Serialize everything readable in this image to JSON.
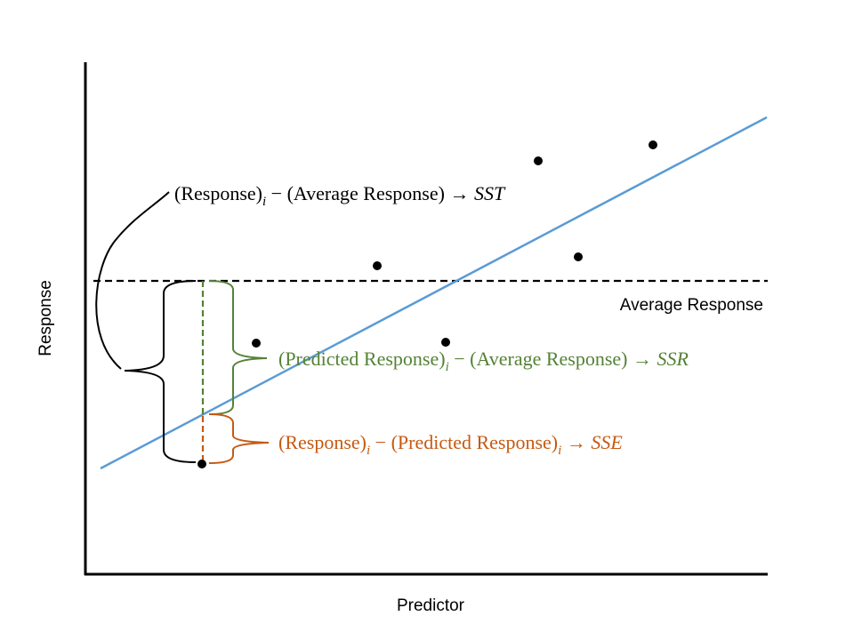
{
  "axes": {
    "xlabel": "Predictor",
    "ylabel": "Response"
  },
  "average_line_label": "Average Response",
  "equations": {
    "sst": {
      "term1": "(Response)",
      "sub1": "i",
      "op": " − ",
      "term2": "(Average Response)",
      "arrow": " → ",
      "result": "SST",
      "color": "#000000"
    },
    "ssr": {
      "term1": "(Predicted Response)",
      "sub1": "i",
      "op": " − ",
      "term2": "(Average Response)",
      "arrow": " → ",
      "result": "SSR",
      "color": "#548235"
    },
    "sse": {
      "term1": "(Response)",
      "sub1": "i",
      "op": " − ",
      "term2": "(Predicted Response)",
      "sub2": "i",
      "arrow": " → ",
      "result": "SSE",
      "color": "#C55A11"
    }
  },
  "colors": {
    "regression_line": "#5B9BD5",
    "average_line": "#000000",
    "points": "#000000"
  }
}
